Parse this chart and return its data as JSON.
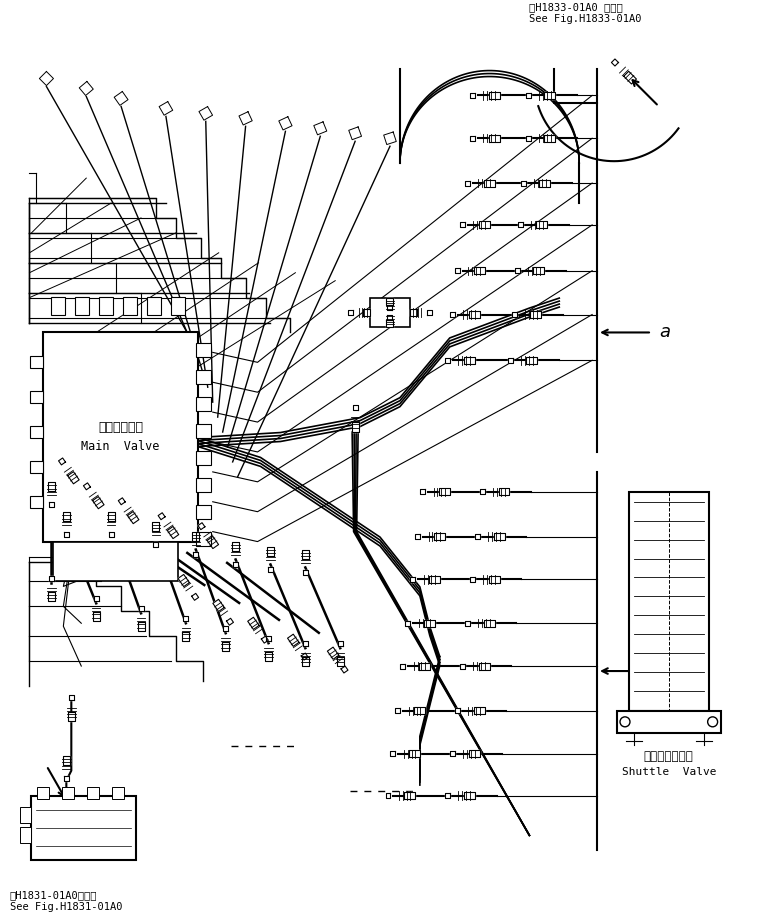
{
  "bg_color": "#ffffff",
  "line_color": "#000000",
  "fig_width": 7.72,
  "fig_height": 9.19,
  "dpi": 100,
  "top_right_text1": "第H1833-01A0 図参照",
  "top_right_text2": "See Fig.H1833-01A0",
  "bottom_left_text1": "第H1831-01A0図参照",
  "bottom_left_text2": "See Fig.H1831-01A0",
  "main_valve_jp": "メインバルブ",
  "main_valve_en": "Main  Valve",
  "shuttle_valve_jp": "シャトルバルブ",
  "shuttle_valve_en": "Shuttle  Valve",
  "label_a": "a"
}
